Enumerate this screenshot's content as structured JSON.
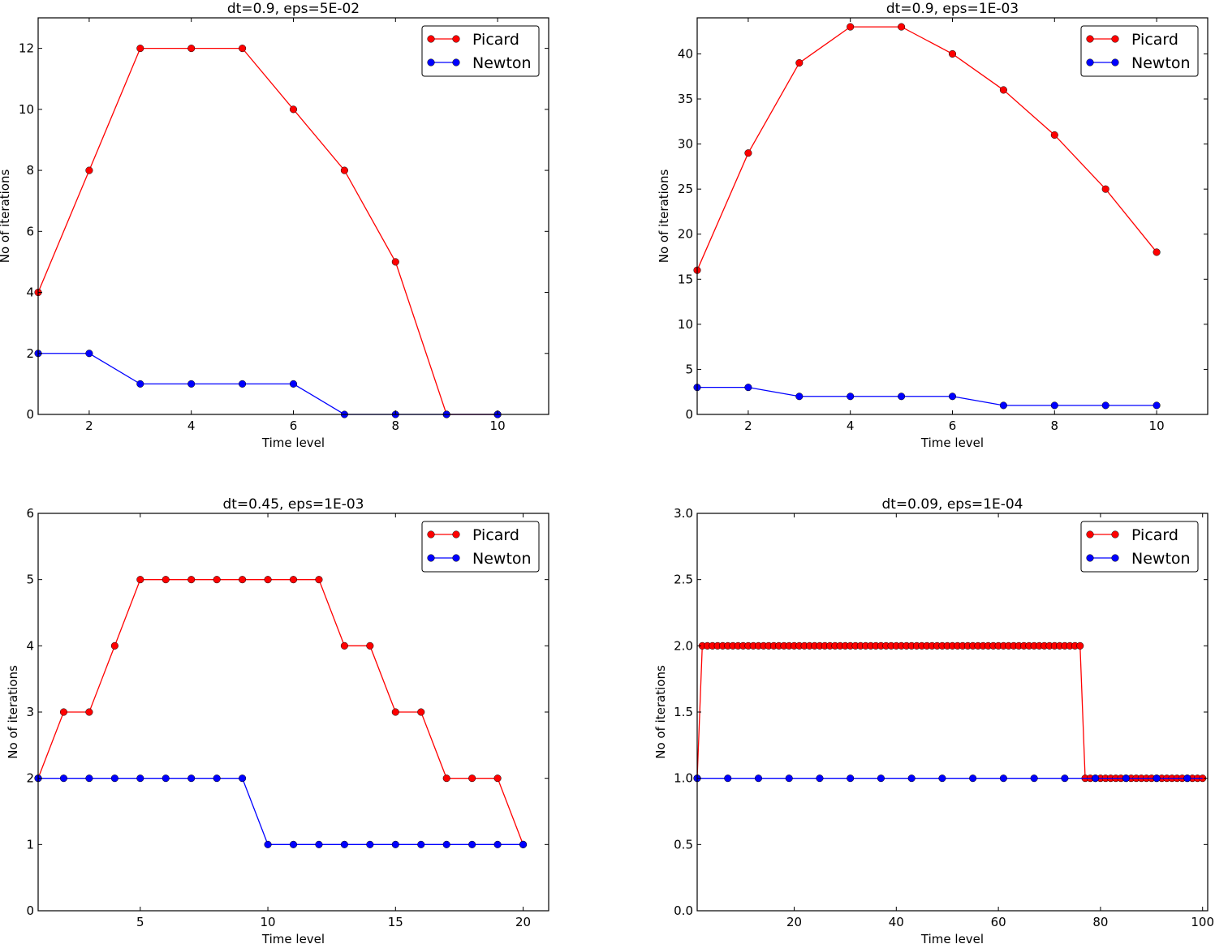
{
  "chart_data": [
    {
      "type": "line",
      "title": "dt=0.9, eps=5E-02",
      "xlabel": "Time level",
      "ylabel": "No of iterations",
      "xlim": [
        1,
        11
      ],
      "ylim": [
        0,
        13
      ],
      "xticks": [
        2,
        4,
        6,
        8,
        10
      ],
      "yticks": [
        0,
        2,
        4,
        6,
        8,
        10,
        12
      ],
      "xtick_labels": [
        "2",
        "4",
        "6",
        "8",
        "10"
      ],
      "ytick_labels": [
        "0",
        "2",
        "4",
        "6",
        "8",
        "10",
        "12"
      ],
      "legend_position": "top-right",
      "grid": false,
      "series": [
        {
          "name": "Picard",
          "color": "#ff0000",
          "x": [
            1,
            2,
            3,
            4,
            5,
            6,
            7,
            8,
            9,
            10
          ],
          "values": [
            4,
            8,
            12,
            12,
            12,
            10,
            8,
            5,
            0,
            0
          ],
          "markevery": 1
        },
        {
          "name": "Newton",
          "color": "#0000ff",
          "x": [
            1,
            2,
            3,
            4,
            5,
            6,
            7,
            8,
            9,
            10
          ],
          "values": [
            2,
            2,
            1,
            1,
            1,
            1,
            0,
            0,
            0,
            0
          ],
          "markevery": 1
        }
      ]
    },
    {
      "type": "line",
      "title": "dt=0.9, eps=1E-03",
      "xlabel": "Time level",
      "ylabel": "No of iterations",
      "xlim": [
        1,
        11
      ],
      "ylim": [
        0,
        44
      ],
      "xticks": [
        2,
        4,
        6,
        8,
        10
      ],
      "yticks": [
        0,
        5,
        10,
        15,
        20,
        25,
        30,
        35,
        40
      ],
      "xtick_labels": [
        "2",
        "4",
        "6",
        "8",
        "10"
      ],
      "ytick_labels": [
        "0",
        "5",
        "10",
        "15",
        "20",
        "25",
        "30",
        "35",
        "40"
      ],
      "legend_position": "top-right",
      "grid": false,
      "series": [
        {
          "name": "Picard",
          "color": "#ff0000",
          "x": [
            1,
            2,
            3,
            4,
            5,
            6,
            7,
            8,
            9,
            10
          ],
          "values": [
            16,
            29,
            39,
            43,
            43,
            40,
            36,
            31,
            25,
            18
          ],
          "markevery": 1
        },
        {
          "name": "Newton",
          "color": "#0000ff",
          "x": [
            1,
            2,
            3,
            4,
            5,
            6,
            7,
            8,
            9,
            10
          ],
          "values": [
            3,
            3,
            2,
            2,
            2,
            2,
            1,
            1,
            1,
            1
          ],
          "markevery": 1
        }
      ]
    },
    {
      "type": "line",
      "title": "dt=0.45, eps=1E-03",
      "xlabel": "Time level",
      "ylabel": "No of iterations",
      "xlim": [
        1,
        21
      ],
      "ylim": [
        0,
        6
      ],
      "xticks": [
        5,
        10,
        15,
        20
      ],
      "yticks": [
        0,
        1,
        2,
        3,
        4,
        5,
        6
      ],
      "xtick_labels": [
        "5",
        "10",
        "15",
        "20"
      ],
      "ytick_labels": [
        "0",
        "1",
        "2",
        "3",
        "4",
        "5",
        "6"
      ],
      "legend_position": "top-right",
      "grid": false,
      "series": [
        {
          "name": "Picard",
          "color": "#ff0000",
          "x": [
            1,
            2,
            3,
            4,
            5,
            6,
            7,
            8,
            9,
            10,
            11,
            12,
            13,
            14,
            15,
            16,
            17,
            18,
            19,
            20
          ],
          "values": [
            2,
            3,
            3,
            4,
            5,
            5,
            5,
            5,
            5,
            5,
            5,
            5,
            4,
            4,
            3,
            3,
            2,
            2,
            2,
            1
          ],
          "markevery": 1
        },
        {
          "name": "Newton",
          "color": "#0000ff",
          "x": [
            1,
            2,
            3,
            4,
            5,
            6,
            7,
            8,
            9,
            10,
            11,
            12,
            13,
            14,
            15,
            16,
            17,
            18,
            19,
            20
          ],
          "values": [
            2,
            2,
            2,
            2,
            2,
            2,
            2,
            2,
            2,
            1,
            1,
            1,
            1,
            1,
            1,
            1,
            1,
            1,
            1,
            1
          ],
          "markevery": 1
        }
      ]
    },
    {
      "type": "line",
      "title": "dt=0.09, eps=1E-04",
      "xlabel": "Time level",
      "ylabel": "No of iterations",
      "xlim": [
        1,
        101
      ],
      "ylim": [
        0,
        3
      ],
      "xticks": [
        20,
        40,
        60,
        80,
        100
      ],
      "yticks": [
        0,
        0.5,
        1,
        1.5,
        2,
        2.5,
        3
      ],
      "xtick_labels": [
        "20",
        "40",
        "60",
        "80",
        "100"
      ],
      "ytick_labels": [
        "0.0",
        "0.5",
        "1.0",
        "1.5",
        "2.0",
        "2.5",
        "3.0"
      ],
      "legend_position": "top-right",
      "grid": false,
      "series": [
        {
          "name": "Picard",
          "color": "#ff0000",
          "x_range": [
            1,
            100
          ],
          "segments": [
            {
              "from": 1,
              "to": 1,
              "value": 1
            },
            {
              "from": 2,
              "to": 76,
              "value": 2
            },
            {
              "from": 77,
              "to": 100,
              "value": 1
            }
          ],
          "markevery": 1
        },
        {
          "name": "Newton",
          "color": "#0000ff",
          "x_range": [
            1,
            100
          ],
          "segments": [
            {
              "from": 1,
              "to": 100,
              "value": 1
            }
          ],
          "markevery": 6
        }
      ]
    }
  ]
}
